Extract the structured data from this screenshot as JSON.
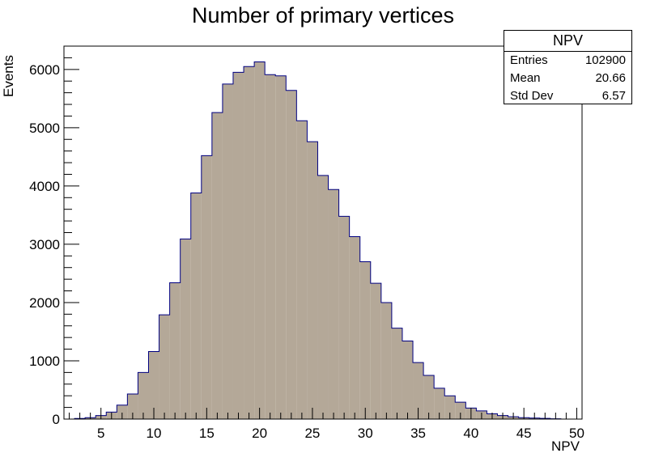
{
  "chart_data": {
    "type": "bar",
    "title": "Number of primary vertices",
    "xlabel": "NPV",
    "ylabel": "Events",
    "xlim": [
      1.5,
      50.5
    ],
    "ylim": [
      0,
      6400
    ],
    "x_ticks": [
      5,
      10,
      15,
      20,
      25,
      30,
      35,
      40,
      45,
      50
    ],
    "y_ticks": [
      0,
      1000,
      2000,
      3000,
      4000,
      5000,
      6000
    ],
    "bin_width": 1,
    "bin_centers": [
      2,
      3,
      4,
      5,
      6,
      7,
      8,
      9,
      10,
      11,
      12,
      13,
      14,
      15,
      16,
      17,
      18,
      19,
      20,
      21,
      22,
      23,
      24,
      25,
      26,
      27,
      28,
      29,
      30,
      31,
      32,
      33,
      34,
      35,
      36,
      37,
      38,
      39,
      40,
      41,
      42,
      43,
      44,
      45,
      46,
      47,
      48,
      49,
      50
    ],
    "values": [
      0,
      10,
      25,
      60,
      120,
      240,
      430,
      800,
      1160,
      1790,
      2340,
      3090,
      3880,
      4520,
      5260,
      5750,
      5950,
      6050,
      6130,
      5910,
      5890,
      5640,
      5120,
      4760,
      4180,
      3940,
      3480,
      3130,
      2700,
      2330,
      2000,
      1560,
      1340,
      970,
      750,
      530,
      400,
      290,
      190,
      140,
      90,
      60,
      40,
      25,
      18,
      12,
      6,
      0,
      0
    ],
    "fill_color": "#b4a898",
    "line_color": "#000080",
    "grid": false,
    "stats": {
      "title": "NPV",
      "rows": [
        {
          "label": "Entries",
          "value": "102900"
        },
        {
          "label": "Mean",
          "value": "20.66"
        },
        {
          "label": "Std Dev",
          "value": "6.57"
        }
      ]
    }
  }
}
